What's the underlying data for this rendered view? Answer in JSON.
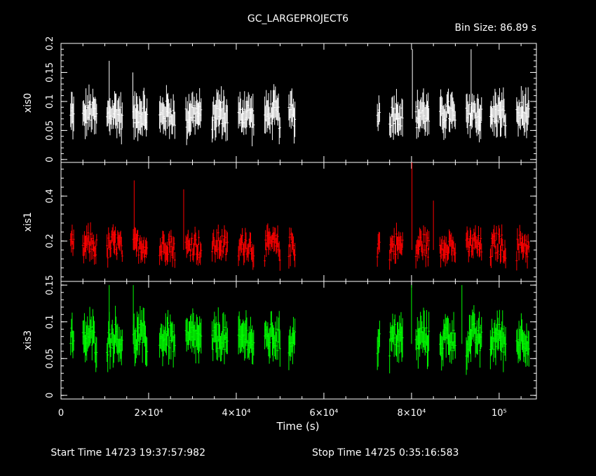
{
  "chart_data": {
    "type": "scatter",
    "title": "GC_LARGEPROJECT6",
    "bin_size": "Bin Size: 86.89 s",
    "xlabel": "Time (s)",
    "xlim": [
      0,
      108500
    ],
    "x_ticks": [
      {
        "v": 0,
        "label": "0"
      },
      {
        "v": 20000,
        "label": "2×10⁴"
      },
      {
        "v": 40000,
        "label": "4×10⁴"
      },
      {
        "v": 60000,
        "label": "6×10⁴"
      },
      {
        "v": 80000,
        "label": "8×10⁴"
      },
      {
        "v": 100000,
        "label": "10⁵"
      }
    ],
    "footer": {
      "start": "Start Time 14723 19:37:57:982",
      "stop": "Stop Time 14725  0:35:16:583"
    },
    "segments": [
      [
        2200,
        2900
      ],
      [
        5000,
        8200
      ],
      [
        10500,
        14000
      ],
      [
        16500,
        19800
      ],
      [
        22500,
        26000
      ],
      [
        28500,
        32000
      ],
      [
        34500,
        38000
      ],
      [
        40500,
        44000
      ],
      [
        46500,
        50000
      ],
      [
        52000,
        53500
      ],
      [
        72200,
        72800
      ],
      [
        75000,
        78000
      ],
      [
        81000,
        84000
      ],
      [
        86500,
        90000
      ],
      [
        92500,
        96000
      ],
      [
        98000,
        101500
      ],
      [
        104000,
        106800
      ]
    ],
    "panels": [
      {
        "name": "xis0",
        "color": "#ffffff",
        "ylim": [
          -0.005,
          0.2
        ],
        "y_ticks": [
          {
            "v": 0,
            "label": "0"
          },
          {
            "v": 0.05,
            "label": "0.05"
          },
          {
            "v": 0.1,
            "label": "0.1"
          },
          {
            "v": 0.15,
            "label": "0.15"
          },
          {
            "v": 0.2,
            "label": "0.2"
          }
        ],
        "mean": 0.07,
        "spread": 0.02,
        "err": 0.03,
        "spikes": [
          [
            11000,
            0.17
          ],
          [
            16400,
            0.15
          ],
          [
            80200,
            0.19
          ],
          [
            93600,
            0.19
          ]
        ]
      },
      {
        "name": "xis1",
        "color": "#ff0000",
        "ylim": [
          0.02,
          0.55
        ],
        "y_ticks": [
          {
            "v": 0.2,
            "label": "0.2"
          },
          {
            "v": 0.4,
            "label": "0.4"
          }
        ],
        "mean": 0.16,
        "spread": 0.05,
        "err": 0.05,
        "spikes": [
          [
            16700,
            0.47
          ],
          [
            28000,
            0.43
          ],
          [
            80100,
            0.55
          ],
          [
            85000,
            0.38
          ]
        ]
      },
      {
        "name": "xis3",
        "color": "#00ff00",
        "ylim": [
          -0.005,
          0.155
        ],
        "y_ticks": [
          {
            "v": 0,
            "label": "0"
          },
          {
            "v": 0.05,
            "label": "0.05"
          },
          {
            "v": 0.1,
            "label": "0.1"
          },
          {
            "v": 0.15,
            "label": "0.15"
          }
        ],
        "mean": 0.07,
        "spread": 0.018,
        "err": 0.025,
        "spikes": [
          [
            11000,
            0.15
          ],
          [
            16500,
            0.15
          ],
          [
            80000,
            0.15
          ],
          [
            91500,
            0.15
          ]
        ]
      }
    ]
  }
}
